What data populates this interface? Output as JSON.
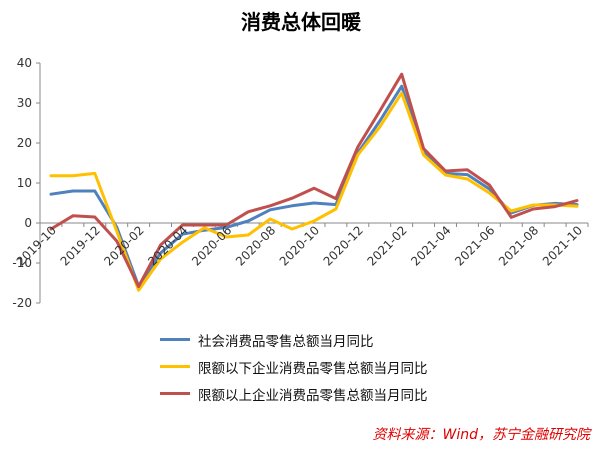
{
  "chart_data": {
    "type": "line",
    "title": "消费总体回暖",
    "x": [
      "2019-10",
      "2019-11",
      "2019-12",
      "2020-01",
      "2020-02",
      "2020-03",
      "2020-04",
      "2020-05",
      "2020-06",
      "2020-07",
      "2020-08",
      "2020-09",
      "2020-10",
      "2020-11",
      "2020-12",
      "2021-01",
      "2021-02",
      "2021-03",
      "2021-04",
      "2021-05",
      "2021-06",
      "2021-07",
      "2021-08",
      "2021-09",
      "2021-10"
    ],
    "x_tick_labels": [
      "2019-10",
      "2019-12",
      "2020-02",
      "2020-04",
      "2020-06",
      "2020-08",
      "2020-10",
      "2020-12",
      "2021-02",
      "2021-04",
      "2021-06",
      "2021-08",
      "2021-10"
    ],
    "ylim": [
      -20,
      40
    ],
    "y_ticks": [
      -20,
      -10,
      0,
      10,
      20,
      30,
      40
    ],
    "grid": false,
    "legend_position": "bottom",
    "series": [
      {
        "name": "社会消费品零售总额当月同比",
        "color": "#4f81bd",
        "values": [
          7.2,
          8.0,
          8.0,
          -1.0,
          -15.8,
          -7.5,
          -2.8,
          -1.8,
          -1.1,
          0.5,
          3.3,
          4.3,
          5.0,
          4.6,
          17.5,
          25.5,
          34.2,
          17.7,
          12.4,
          12.1,
          8.5,
          2.5,
          4.4,
          4.9,
          4.6
        ]
      },
      {
        "name": "限额以下企业消费品零售总额当月同比",
        "color": "#ffc000",
        "values": [
          11.8,
          11.8,
          12.4,
          -2.0,
          -16.8,
          -9.0,
          -4.8,
          -1.2,
          -3.5,
          -3.0,
          1.0,
          -1.5,
          0.5,
          3.5,
          17.0,
          24.0,
          32.5,
          17.0,
          12.0,
          11.0,
          7.5,
          3.0,
          4.5,
          4.5,
          4.2
        ]
      },
      {
        "name": "限额以上企业消费品零售总额当月同比",
        "color": "#c0504d",
        "values": [
          -1.5,
          1.8,
          1.5,
          -4.5,
          -15.9,
          -5.5,
          -0.5,
          -0.5,
          -0.5,
          2.8,
          4.3,
          6.2,
          8.7,
          6.1,
          19.0,
          28.0,
          37.2,
          18.6,
          13.0,
          13.3,
          9.5,
          1.4,
          3.5,
          4.1,
          5.6
        ]
      }
    ]
  },
  "source_text": "资料来源：Wind，苏宁金融研究院"
}
